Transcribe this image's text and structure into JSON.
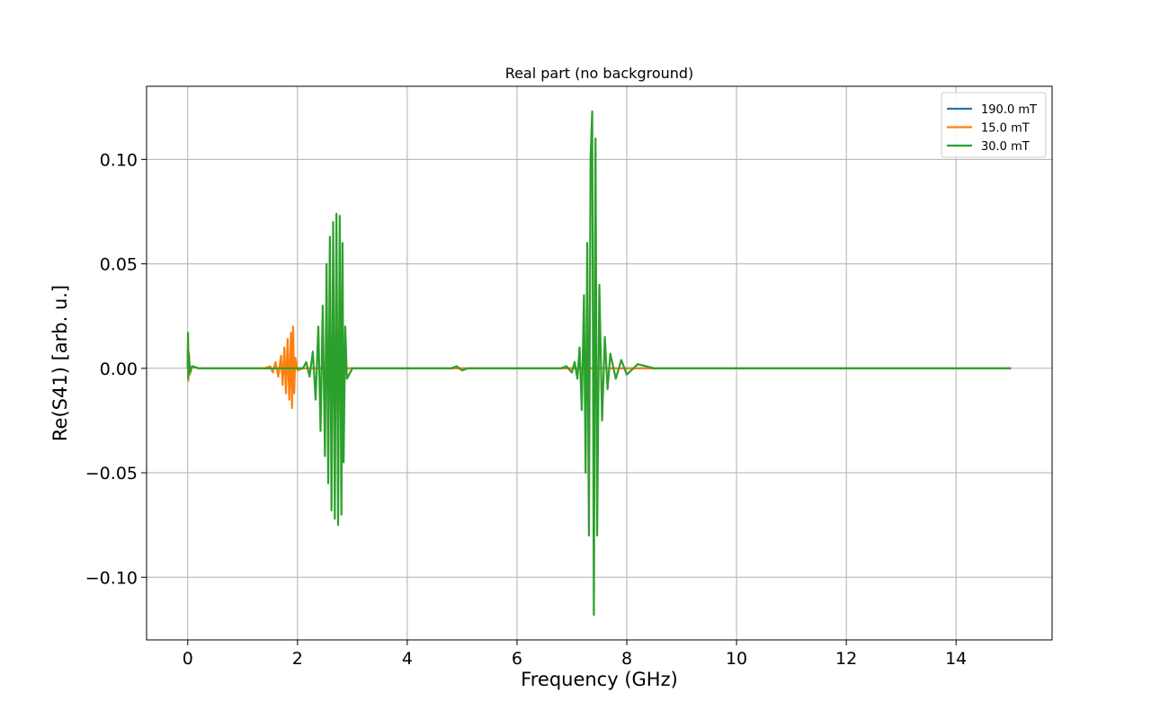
{
  "chart_data": {
    "type": "line",
    "title": "Real part (no background)",
    "xlabel": "Frequency (GHz)",
    "ylabel": "Re(S41) [arb. u.]",
    "xlim": [
      -0.75,
      15.75
    ],
    "ylim": [
      -0.13,
      0.135
    ],
    "xticks": [
      0,
      2,
      4,
      6,
      8,
      10,
      12,
      14
    ],
    "xtick_labels": [
      "0",
      "2",
      "4",
      "6",
      "8",
      "10",
      "12",
      "14"
    ],
    "yticks": [
      -0.1,
      -0.05,
      0.0,
      0.05,
      0.1
    ],
    "ytick_labels": [
      "−0.10",
      "−0.05",
      "0.00",
      "0.05",
      "0.10"
    ],
    "grid": true,
    "legend_position": "upper-right",
    "series": [
      {
        "name": "190.0 mT",
        "color": "#1f77b4",
        "x": [
          0.0,
          0.005,
          0.01,
          0.02,
          0.04,
          0.08,
          0.2,
          5.0,
          10.0,
          15.0
        ],
        "y": [
          0.0,
          0.012,
          -0.004,
          0.006,
          -0.002,
          0.001,
          0.0,
          0.0,
          0.0,
          0.0
        ]
      },
      {
        "name": "15.0 mT",
        "color": "#ff7f0e",
        "x": [
          0.0,
          0.005,
          0.01,
          0.02,
          0.04,
          0.08,
          0.2,
          1.4,
          1.5,
          1.55,
          1.6,
          1.65,
          1.7,
          1.73,
          1.76,
          1.79,
          1.82,
          1.85,
          1.88,
          1.9,
          1.92,
          1.94,
          1.96,
          2.0,
          2.1,
          3.0,
          15.0
        ],
        "y": [
          0.0,
          0.015,
          -0.006,
          0.008,
          -0.003,
          0.001,
          0.0,
          0.0,
          0.001,
          -0.002,
          0.003,
          -0.004,
          0.006,
          -0.008,
          0.01,
          -0.012,
          0.014,
          -0.015,
          0.017,
          -0.019,
          0.02,
          -0.012,
          0.005,
          -0.001,
          0.0,
          0.0,
          0.0
        ]
      },
      {
        "name": "30.0 mT",
        "color": "#2ca02c",
        "x": [
          0.0,
          0.005,
          0.01,
          0.02,
          0.04,
          0.08,
          0.2,
          2.1,
          2.16,
          2.22,
          2.28,
          2.33,
          2.38,
          2.42,
          2.46,
          2.5,
          2.53,
          2.56,
          2.59,
          2.62,
          2.65,
          2.68,
          2.71,
          2.74,
          2.77,
          2.8,
          2.82,
          2.84,
          2.87,
          2.9,
          3.0,
          4.8,
          4.9,
          5.0,
          5.1,
          6.8,
          6.9,
          7.0,
          7.05,
          7.1,
          7.14,
          7.18,
          7.22,
          7.25,
          7.28,
          7.31,
          7.34,
          7.37,
          7.4,
          7.43,
          7.46,
          7.5,
          7.55,
          7.6,
          7.65,
          7.7,
          7.8,
          7.9,
          8.0,
          8.2,
          8.5,
          15.0
        ],
        "y": [
          0.0,
          0.017,
          -0.005,
          0.007,
          -0.002,
          0.001,
          0.0,
          0.0,
          0.003,
          -0.004,
          0.008,
          -0.015,
          0.02,
          -0.03,
          0.03,
          -0.042,
          0.05,
          -0.055,
          0.063,
          -0.068,
          0.07,
          -0.072,
          0.074,
          -0.075,
          0.073,
          -0.07,
          0.06,
          -0.045,
          0.02,
          -0.005,
          0.0,
          0.0,
          0.001,
          -0.001,
          0.0,
          0.0,
          0.001,
          -0.002,
          0.003,
          -0.005,
          0.01,
          -0.02,
          0.035,
          -0.05,
          0.06,
          -0.08,
          0.1,
          0.123,
          -0.118,
          0.11,
          -0.08,
          0.04,
          -0.025,
          0.015,
          -0.01,
          0.007,
          -0.005,
          0.004,
          -0.003,
          0.002,
          0.0,
          0.0
        ]
      }
    ]
  }
}
